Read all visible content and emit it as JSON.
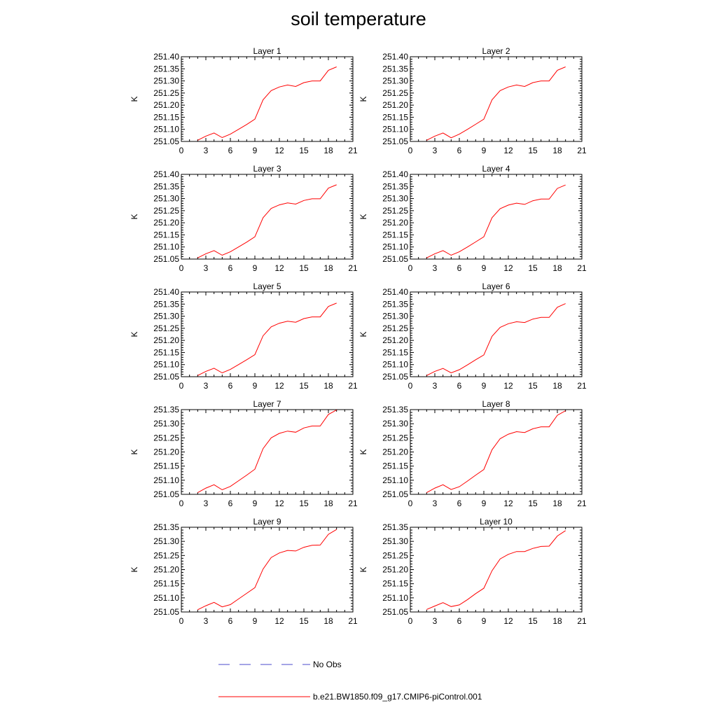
{
  "title": "soil temperature",
  "legend": [
    {
      "label": "No Obs",
      "color": "#4b4bcc",
      "dashed": true
    },
    {
      "label": "b.e21.BW1850.f09_g17.CMIP6-piControl.001",
      "color": "#ff0000",
      "dashed": false
    }
  ],
  "chart_data": [
    {
      "type": "line",
      "title": "Layer 1",
      "xlabel": "",
      "ylabel": "K",
      "xlim": [
        0,
        21
      ],
      "ylim": [
        251.05,
        251.4
      ],
      "xticks": [
        0,
        3,
        6,
        9,
        12,
        15,
        18,
        21
      ],
      "yticks": [
        "251.05",
        "251.10",
        "251.15",
        "251.20",
        "251.25",
        "251.30",
        "251.35",
        "251.40"
      ],
      "series": [
        {
          "name": "b.e21.BW1850.f09_g17.CMIP6-piControl.001",
          "color": "#ff0000",
          "x": [
            2,
            3,
            4,
            5,
            6,
            7,
            8,
            9,
            10,
            11,
            12,
            13,
            14,
            15,
            16,
            17,
            18,
            19
          ],
          "y": [
            251.055,
            251.072,
            251.085,
            251.066,
            251.08,
            251.1,
            251.12,
            251.142,
            251.222,
            251.26,
            251.275,
            251.283,
            251.277,
            251.293,
            251.3,
            251.3,
            251.344,
            251.358
          ]
        }
      ]
    },
    {
      "type": "line",
      "title": "Layer 2",
      "xlabel": "",
      "ylabel": "K",
      "xlim": [
        0,
        21
      ],
      "ylim": [
        251.05,
        251.4
      ],
      "xticks": [
        0,
        3,
        6,
        9,
        12,
        15,
        18,
        21
      ],
      "yticks": [
        "251.05",
        "251.10",
        "251.15",
        "251.20",
        "251.25",
        "251.30",
        "251.35",
        "251.40"
      ],
      "series": [
        {
          "name": "b.e21.BW1850.f09_g17.CMIP6-piControl.001",
          "color": "#ff0000",
          "x": [
            2,
            3,
            4,
            5,
            6,
            7,
            8,
            9,
            10,
            11,
            12,
            13,
            14,
            15,
            16,
            17,
            18,
            19
          ],
          "y": [
            251.055,
            251.072,
            251.085,
            251.065,
            251.08,
            251.1,
            251.121,
            251.142,
            251.222,
            251.26,
            251.275,
            251.283,
            251.277,
            251.293,
            251.3,
            251.3,
            251.344,
            251.358
          ]
        }
      ]
    },
    {
      "type": "line",
      "title": "Layer 3",
      "xlabel": "",
      "ylabel": "K",
      "xlim": [
        0,
        21
      ],
      "ylim": [
        251.05,
        251.4
      ],
      "xticks": [
        0,
        3,
        6,
        9,
        12,
        15,
        18,
        21
      ],
      "yticks": [
        "251.05",
        "251.10",
        "251.15",
        "251.20",
        "251.25",
        "251.30",
        "251.35",
        "251.40"
      ],
      "series": [
        {
          "name": "b.e21.BW1850.f09_g17.CMIP6-piControl.001",
          "color": "#ff0000",
          "x": [
            2,
            3,
            4,
            5,
            6,
            7,
            8,
            9,
            10,
            11,
            12,
            13,
            14,
            15,
            16,
            17,
            18,
            19
          ],
          "y": [
            251.055,
            251.072,
            251.085,
            251.066,
            251.08,
            251.1,
            251.12,
            251.142,
            251.221,
            251.259,
            251.274,
            251.282,
            251.277,
            251.292,
            251.299,
            251.299,
            251.343,
            251.357
          ]
        }
      ]
    },
    {
      "type": "line",
      "title": "Layer 4",
      "xlabel": "",
      "ylabel": "K",
      "xlim": [
        0,
        21
      ],
      "ylim": [
        251.05,
        251.4
      ],
      "xticks": [
        0,
        3,
        6,
        9,
        12,
        15,
        18,
        21
      ],
      "yticks": [
        "251.05",
        "251.10",
        "251.15",
        "251.20",
        "251.25",
        "251.30",
        "251.35",
        "251.40"
      ],
      "series": [
        {
          "name": "b.e21.BW1850.f09_g17.CMIP6-piControl.001",
          "color": "#ff0000",
          "x": [
            2,
            3,
            4,
            5,
            6,
            7,
            8,
            9,
            10,
            11,
            12,
            13,
            14,
            15,
            16,
            17,
            18,
            19
          ],
          "y": [
            251.055,
            251.072,
            251.085,
            251.066,
            251.08,
            251.1,
            251.121,
            251.142,
            251.221,
            251.258,
            251.273,
            251.281,
            251.276,
            251.291,
            251.298,
            251.298,
            251.342,
            251.356
          ]
        }
      ]
    },
    {
      "type": "line",
      "title": "Layer 5",
      "xlabel": "",
      "ylabel": "K",
      "xlim": [
        0,
        21
      ],
      "ylim": [
        251.05,
        251.4
      ],
      "xticks": [
        0,
        3,
        6,
        9,
        12,
        15,
        18,
        21
      ],
      "yticks": [
        "251.05",
        "251.10",
        "251.15",
        "251.20",
        "251.25",
        "251.30",
        "251.35",
        "251.40"
      ],
      "series": [
        {
          "name": "b.e21.BW1850.f09_g17.CMIP6-piControl.001",
          "color": "#ff0000",
          "x": [
            2,
            3,
            4,
            5,
            6,
            7,
            8,
            9,
            10,
            11,
            12,
            13,
            14,
            15,
            16,
            17,
            18,
            19
          ],
          "y": [
            251.055,
            251.072,
            251.085,
            251.066,
            251.08,
            251.1,
            251.12,
            251.141,
            251.219,
            251.256,
            251.271,
            251.279,
            251.275,
            251.29,
            251.297,
            251.297,
            251.34,
            251.354
          ]
        }
      ]
    },
    {
      "type": "line",
      "title": "Layer 6",
      "xlabel": "",
      "ylabel": "K",
      "xlim": [
        0,
        21
      ],
      "ylim": [
        251.05,
        251.4
      ],
      "xticks": [
        0,
        3,
        6,
        9,
        12,
        15,
        18,
        21
      ],
      "yticks": [
        "251.05",
        "251.10",
        "251.15",
        "251.20",
        "251.25",
        "251.30",
        "251.35",
        "251.40"
      ],
      "series": [
        {
          "name": "b.e21.BW1850.f09_g17.CMIP6-piControl.001",
          "color": "#ff0000",
          "x": [
            2,
            3,
            4,
            5,
            6,
            7,
            8,
            9,
            10,
            11,
            12,
            13,
            14,
            15,
            16,
            17,
            18,
            19
          ],
          "y": [
            251.055,
            251.072,
            251.084,
            251.066,
            251.079,
            251.099,
            251.12,
            251.14,
            251.217,
            251.254,
            251.269,
            251.277,
            251.274,
            251.288,
            251.295,
            251.295,
            251.337,
            251.352
          ]
        }
      ]
    },
    {
      "type": "line",
      "title": "Layer 7",
      "xlabel": "",
      "ylabel": "K",
      "xlim": [
        0,
        21
      ],
      "ylim": [
        251.05,
        251.35
      ],
      "xticks": [
        0,
        3,
        6,
        9,
        12,
        15,
        18,
        21
      ],
      "yticks": [
        "251.05",
        "251.10",
        "251.15",
        "251.20",
        "251.25",
        "251.30",
        "251.35"
      ],
      "series": [
        {
          "name": "b.e21.BW1850.f09_g17.CMIP6-piControl.001",
          "color": "#ff0000",
          "x": [
            2,
            3,
            4,
            5,
            6,
            7,
            8,
            9,
            10,
            11,
            12,
            13,
            14,
            15,
            16,
            17,
            18,
            19
          ],
          "y": [
            251.056,
            251.072,
            251.084,
            251.066,
            251.078,
            251.098,
            251.118,
            251.139,
            251.212,
            251.25,
            251.266,
            251.274,
            251.27,
            251.285,
            251.292,
            251.292,
            251.333,
            251.349
          ]
        }
      ]
    },
    {
      "type": "line",
      "title": "Layer 8",
      "xlabel": "",
      "ylabel": "K",
      "xlim": [
        0,
        21
      ],
      "ylim": [
        251.05,
        251.35
      ],
      "xticks": [
        0,
        3,
        6,
        9,
        12,
        15,
        18,
        21
      ],
      "yticks": [
        "251.05",
        "251.10",
        "251.15",
        "251.20",
        "251.25",
        "251.30",
        "251.35"
      ],
      "series": [
        {
          "name": "b.e21.BW1850.f09_g17.CMIP6-piControl.001",
          "color": "#ff0000",
          "x": [
            2,
            3,
            4,
            5,
            6,
            7,
            8,
            9,
            10,
            11,
            12,
            13,
            14,
            15,
            16,
            17,
            18,
            19
          ],
          "y": [
            251.056,
            251.072,
            251.084,
            251.067,
            251.077,
            251.097,
            251.118,
            251.138,
            251.208,
            251.247,
            251.263,
            251.272,
            251.269,
            251.282,
            251.289,
            251.289,
            251.33,
            251.346
          ]
        }
      ]
    },
    {
      "type": "line",
      "title": "Layer 9",
      "xlabel": "",
      "ylabel": "K",
      "xlim": [
        0,
        21
      ],
      "ylim": [
        251.05,
        251.35
      ],
      "xticks": [
        0,
        3,
        6,
        9,
        12,
        15,
        18,
        21
      ],
      "yticks": [
        "251.05",
        "251.10",
        "251.15",
        "251.20",
        "251.25",
        "251.30",
        "251.35"
      ],
      "series": [
        {
          "name": "b.e21.BW1850.f09_g17.CMIP6-piControl.001",
          "color": "#ff0000",
          "x": [
            2,
            3,
            4,
            5,
            6,
            7,
            8,
            9,
            10,
            11,
            12,
            13,
            14,
            15,
            16,
            17,
            18,
            19
          ],
          "y": [
            251.058,
            251.072,
            251.084,
            251.068,
            251.076,
            251.096,
            251.116,
            251.136,
            251.202,
            251.243,
            251.259,
            251.268,
            251.266,
            251.279,
            251.286,
            251.287,
            251.325,
            251.342
          ]
        }
      ]
    },
    {
      "type": "line",
      "title": "Layer 10",
      "xlabel": "",
      "ylabel": "K",
      "xlim": [
        0,
        21
      ],
      "ylim": [
        251.05,
        251.35
      ],
      "xticks": [
        0,
        3,
        6,
        9,
        12,
        15,
        18,
        21
      ],
      "yticks": [
        "251.05",
        "251.10",
        "251.15",
        "251.20",
        "251.25",
        "251.30",
        "251.35"
      ],
      "series": [
        {
          "name": "b.e21.BW1850.f09_g17.CMIP6-piControl.001",
          "color": "#ff0000",
          "x": [
            2,
            3,
            4,
            5,
            6,
            7,
            8,
            9,
            10,
            11,
            12,
            13,
            14,
            15,
            16,
            17,
            18,
            19
          ],
          "y": [
            251.059,
            251.071,
            251.083,
            251.069,
            251.075,
            251.094,
            251.115,
            251.134,
            251.196,
            251.238,
            251.254,
            251.264,
            251.264,
            251.275,
            251.282,
            251.283,
            251.319,
            251.338
          ]
        }
      ]
    }
  ]
}
